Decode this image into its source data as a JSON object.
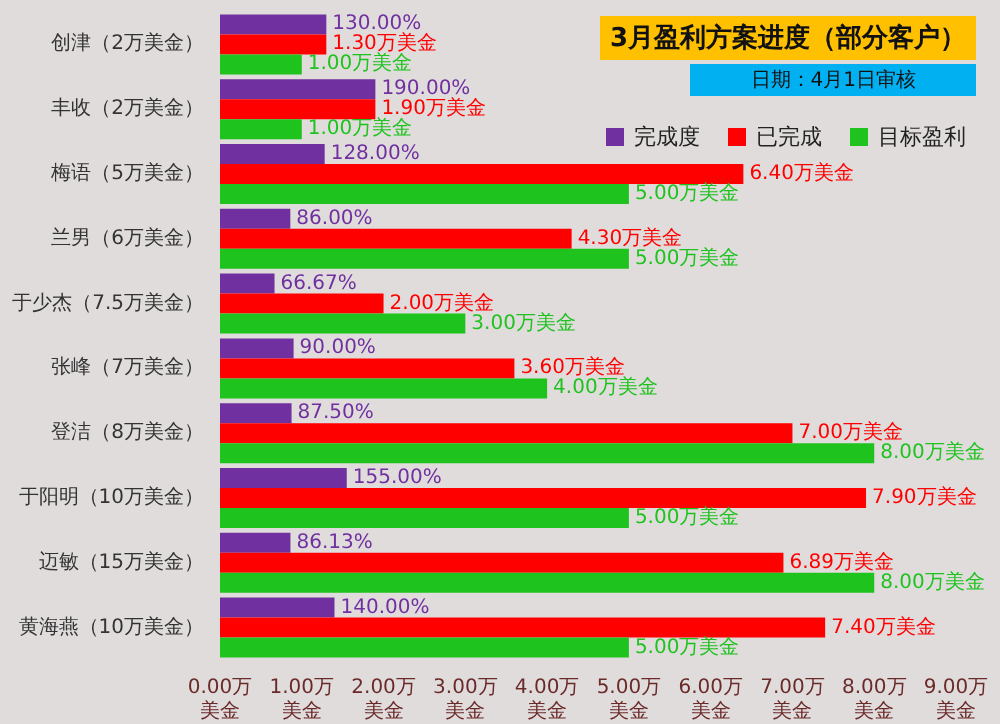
{
  "chart_data": {
    "type": "bar",
    "orientation": "horizontal",
    "title": "3月盈利方案进度（部分客户）",
    "subtitle": "日期：4月1日审核",
    "categories": [
      "创津（2万美金）",
      "丰收（2万美金）",
      "梅语（5万美金）",
      "兰男（6万美金）",
      "于少杰（7.5万美金）",
      "张峰（7万美金）",
      "登洁（8万美金）",
      "于阳明（10万美金）",
      "迈敏（15万美金）",
      "黄海燕（10万美金）"
    ],
    "series": [
      {
        "name": "完成度",
        "color": "#7030a0",
        "values": [
          1.3,
          1.9,
          1.28,
          0.86,
          0.6667,
          0.9,
          0.875,
          1.55,
          0.8613,
          1.4
        ],
        "value_labels": [
          "130.00%",
          "190.00%",
          "128.00%",
          "86.00%",
          "66.67%",
          "90.00%",
          "87.50%",
          "155.00%",
          "86.13%",
          "140.00%"
        ]
      },
      {
        "name": "已完成",
        "color": "#ff0000",
        "values": [
          1.3,
          1.9,
          6.4,
          4.3,
          2.0,
          3.6,
          7.0,
          7.9,
          6.89,
          7.4
        ],
        "value_labels": [
          "1.30万美金",
          "1.90万美金",
          "6.40万美金",
          "4.30万美金",
          "2.00万美金",
          "3.60万美金",
          "7.00万美金",
          "7.90万美金",
          "6.89万美金",
          "7.40万美金"
        ]
      },
      {
        "name": "目标盈利",
        "color": "#1ec31e",
        "values": [
          1.0,
          1.0,
          5.0,
          5.0,
          3.0,
          4.0,
          8.0,
          5.0,
          8.0,
          5.0
        ],
        "value_labels": [
          "1.00万美金",
          "1.00万美金",
          "5.00万美金",
          "5.00万美金",
          "3.00万美金",
          "4.00万美金",
          "8.00万美金",
          "5.00万美金",
          "8.00万美金",
          "5.00万美金"
        ]
      }
    ],
    "xlim": [
      0,
      9
    ],
    "xticks": [
      {
        "value": 0,
        "label": "0.00万美金"
      },
      {
        "value": 1,
        "label": "1.00万美金"
      },
      {
        "value": 2,
        "label": "2.00万美金"
      },
      {
        "value": 3,
        "label": "3.00万美金"
      },
      {
        "value": 4,
        "label": "4.00万美金"
      },
      {
        "value": 5,
        "label": "5.00万美金"
      },
      {
        "value": 6,
        "label": "6.00万美金"
      },
      {
        "value": 7,
        "label": "7.00万美金"
      },
      {
        "value": 8,
        "label": "8.00万美金"
      },
      {
        "value": 9,
        "label": "9.00万美金"
      }
    ],
    "legend": "top right"
  }
}
